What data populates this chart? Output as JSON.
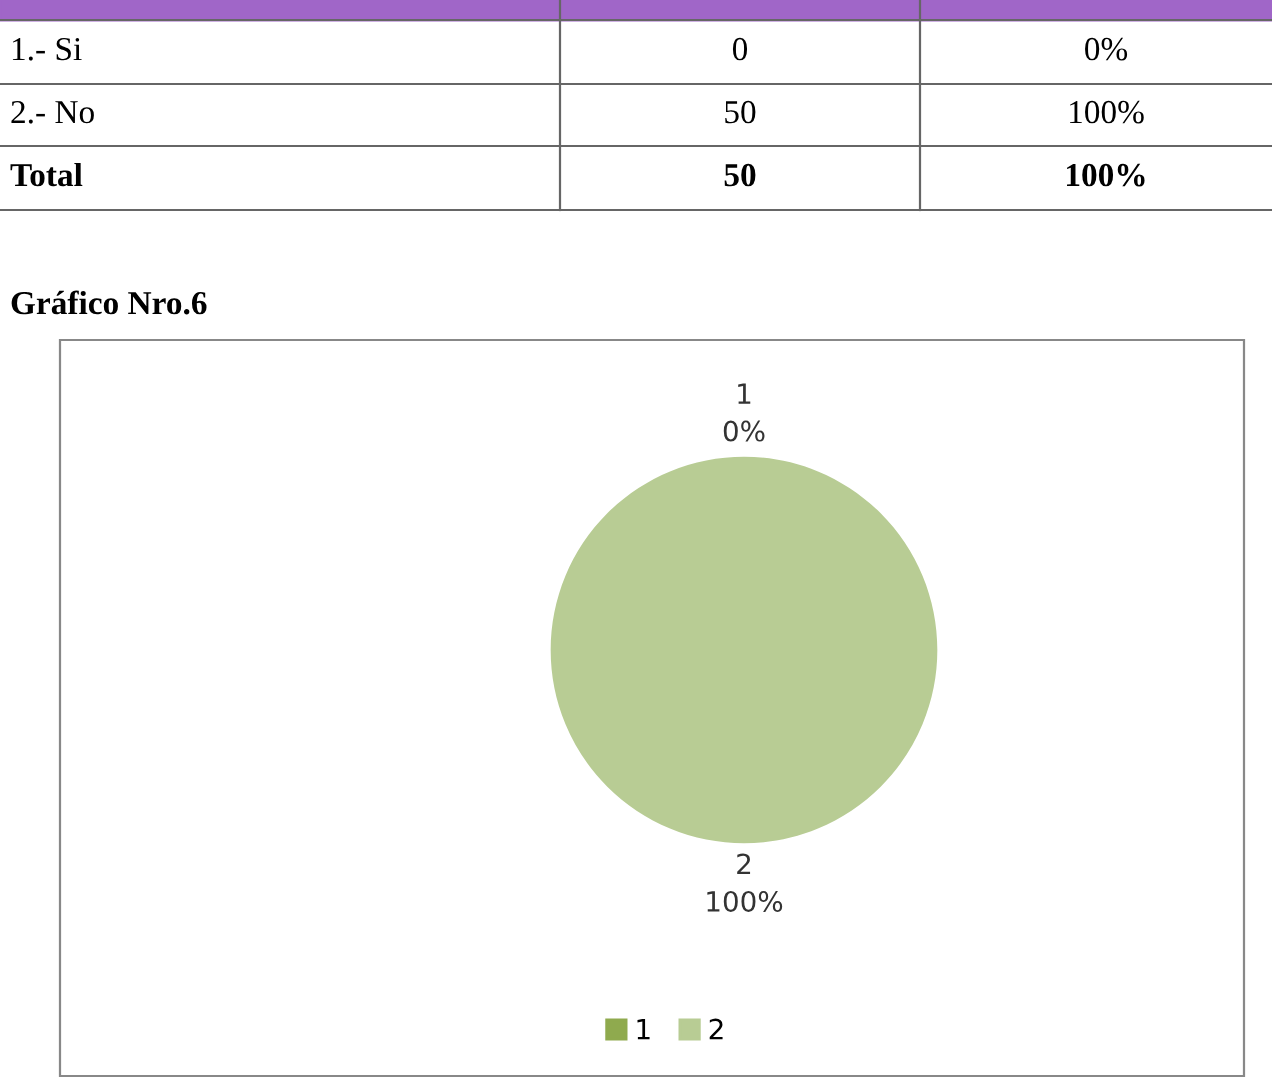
{
  "chart_data": {
    "type": "pie",
    "title": "Gráfico Nro.6",
    "categories": [
      "1",
      "2"
    ],
    "values": [
      0,
      100
    ],
    "colors": [
      "#8faa4e",
      "#b8cc94"
    ],
    "value_labels": [
      "0%",
      "100%"
    ],
    "legend": "bottom",
    "annotations": [
      "1.- Si",
      "0",
      "0%",
      "2.- No",
      "50",
      "100%",
      "Total",
      "50",
      "100%"
    ]
  }
}
